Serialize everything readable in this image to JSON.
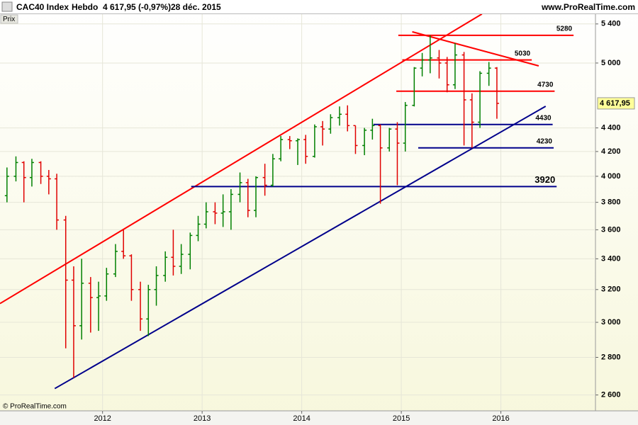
{
  "header": {
    "instrument": "CAC40 Index",
    "period": "Hebdo",
    "quote": "4 617,95 (-0,97%)",
    "date": "28 déc. 2015",
    "site": "www.ProRealTime.com",
    "panel": "Prix",
    "copyright": "© ProRealTime.com"
  },
  "chart_data": {
    "type": "ohlc",
    "log_scale": true,
    "grid": true,
    "up_color": "#008000",
    "down_color": "#e00000",
    "x": [
      2011.04,
      2011.13,
      2011.21,
      2011.29,
      2011.38,
      2011.46,
      2011.54,
      2011.63,
      2011.71,
      2011.79,
      2011.88,
      2011.96,
      2012.04,
      2012.13,
      2012.21,
      2012.29,
      2012.38,
      2012.46,
      2012.54,
      2012.63,
      2012.71,
      2012.79,
      2012.88,
      2012.96,
      2013.04,
      2013.13,
      2013.21,
      2013.29,
      2013.38,
      2013.46,
      2013.54,
      2013.63,
      2013.71,
      2013.79,
      2013.88,
      2013.96,
      2014.04,
      2014.13,
      2014.21,
      2014.29,
      2014.38,
      2014.46,
      2014.54,
      2014.63,
      2014.71,
      2014.79,
      2014.88,
      2014.96,
      2015.04,
      2015.13,
      2015.21,
      2015.29,
      2015.38,
      2015.46,
      2015.54,
      2015.63,
      2015.71,
      2015.79,
      2015.88,
      2015.96
    ],
    "open": [
      3850,
      4000,
      4110,
      3990,
      4110,
      4000,
      3980,
      3670,
      3260,
      2980,
      3240,
      3150,
      3160,
      3300,
      3450,
      3420,
      3200,
      3020,
      3200,
      3290,
      3410,
      3350,
      3430,
      3560,
      3640,
      3730,
      3720,
      3730,
      3860,
      3950,
      3740,
      3990,
      3930,
      4140,
      4300,
      4290,
      4300,
      4160,
      4410,
      4390,
      4490,
      4520,
      4420,
      4250,
      4380,
      4420,
      4230,
      4390,
      4270,
      4600,
      4950,
      5030,
      5050,
      5000,
      4790,
      5080,
      4650,
      4450,
      4900,
      4950
    ],
    "high": [
      4070,
      4160,
      4120,
      4140,
      4120,
      4050,
      4020,
      3700,
      3350,
      3400,
      3280,
      3250,
      3340,
      3500,
      3600,
      3430,
      3250,
      3230,
      3350,
      3450,
      3600,
      3500,
      3580,
      3700,
      3800,
      3800,
      3860,
      3900,
      4030,
      3980,
      4000,
      4100,
      4180,
      4330,
      4330,
      4310,
      4340,
      4430,
      4460,
      4520,
      4590,
      4600,
      4420,
      4400,
      4480,
      4430,
      4400,
      4450,
      4630,
      4960,
      5100,
      5280,
      5130,
      5060,
      5200,
      5110,
      4710,
      4920,
      5010,
      4960
    ],
    "low": [
      3800,
      3960,
      3800,
      3920,
      3940,
      3860,
      3600,
      2850,
      2690,
      2900,
      2940,
      2950,
      3130,
      3280,
      3400,
      3130,
      2950,
      2920,
      3100,
      3250,
      3290,
      3300,
      3330,
      3520,
      3610,
      3640,
      3620,
      3600,
      3800,
      3690,
      3690,
      3850,
      3920,
      4120,
      4220,
      4090,
      4100,
      4150,
      4250,
      4350,
      4420,
      4370,
      4180,
      4170,
      4300,
      3790,
      4200,
      3930,
      4200,
      4590,
      4870,
      4900,
      4850,
      4720,
      4750,
      4250,
      4230,
      4400,
      4780,
      4480
    ],
    "close": [
      4000,
      4110,
      3990,
      4110,
      4000,
      3980,
      3670,
      3260,
      2980,
      3240,
      3150,
      3160,
      3300,
      3450,
      3420,
      3200,
      3020,
      3200,
      3290,
      3410,
      3350,
      3430,
      3560,
      3640,
      3730,
      3720,
      3730,
      3860,
      3950,
      3740,
      3990,
      3930,
      4140,
      4300,
      4290,
      4300,
      4160,
      4410,
      4390,
      4490,
      4520,
      4420,
      4250,
      4380,
      4420,
      4230,
      4390,
      4270,
      4600,
      4950,
      5030,
      5050,
      5000,
      4790,
      5080,
      4650,
      4450,
      4900,
      4950,
      4617.95
    ],
    "last_price": {
      "value": 4617.95,
      "label": "4 617,95"
    },
    "xlim": [
      2010.97,
      2016.95
    ],
    "xticks": [
      2012,
      2013,
      2014,
      2015,
      2016
    ],
    "ylim": [
      2520,
      5505
    ],
    "yticks": [
      {
        "value": 2600,
        "label": "2 600"
      },
      {
        "value": 2800,
        "label": "2 800"
      },
      {
        "value": 3000,
        "label": "3 000"
      },
      {
        "value": 3200,
        "label": "3 200"
      },
      {
        "value": 3400,
        "label": "3 400"
      },
      {
        "value": 3600,
        "label": "3 600"
      },
      {
        "value": 3800,
        "label": "3 800"
      },
      {
        "value": 4000,
        "label": "4 000"
      },
      {
        "value": 4200,
        "label": "4 200"
      },
      {
        "value": 4400,
        "label": "4 400"
      },
      {
        "value": 5000,
        "label": "5 000"
      },
      {
        "value": 5400,
        "label": "5 400"
      }
    ],
    "levels": [
      {
        "value": 5280,
        "color": "#ff0000",
        "x": [
          2014.97,
          2016.73
        ]
      },
      {
        "value": 5030,
        "color": "#ff0000",
        "x": [
          2015.01,
          2016.31
        ]
      },
      {
        "value": 4730,
        "color": "#ff0000",
        "x": [
          2014.95,
          2016.54
        ]
      },
      {
        "value": 4430,
        "color": "#00008b",
        "x": [
          2014.72,
          2016.52
        ]
      },
      {
        "value": 4230,
        "color": "#00008b",
        "x": [
          2015.17,
          2016.53
        ]
      },
      {
        "value": 3920,
        "color": "#00008b",
        "x": [
          2012.89,
          2016.56
        ]
      }
    ],
    "trendlines": [
      {
        "color": "#ff0000",
        "x": [
          2010.97,
          2015.81
        ],
        "y": [
          3113,
          5507
        ]
      },
      {
        "color": "#00008b",
        "x": [
          2011.52,
          2016.45
        ],
        "y": [
          2633,
          4592
        ]
      },
      {
        "color": "#ff0000",
        "x": [
          2015.11,
          2016.38
        ],
        "y": [
          5317,
          4972
        ]
      }
    ]
  }
}
